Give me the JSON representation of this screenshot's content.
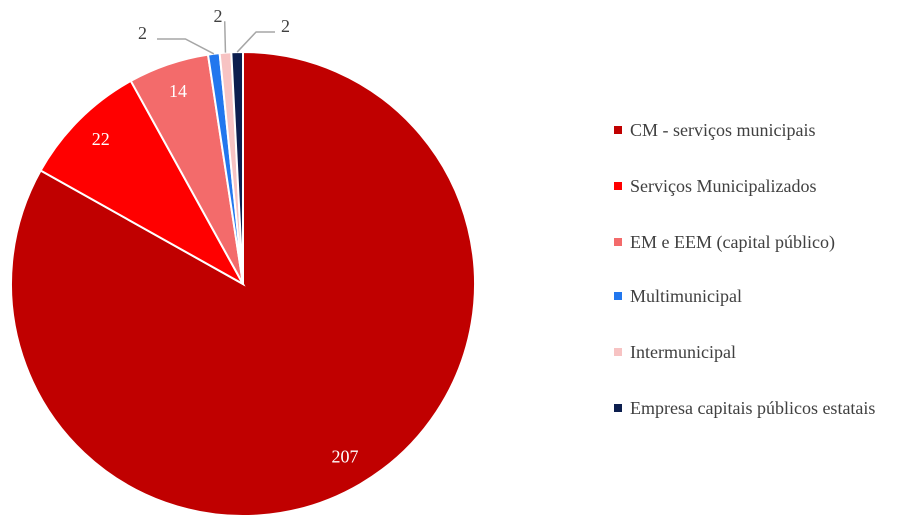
{
  "chart_data": {
    "type": "pie",
    "categories": [
      "CM - serviços municipais",
      "Serviços Municipalizados",
      "EM e EEM (capital público)",
      "Multimunicipal",
      "Intermunicipal",
      "Empresa capitais públicos estatais"
    ],
    "values": [
      207,
      22,
      14,
      2,
      2,
      2
    ],
    "colors": [
      "#c00000",
      "#ff0000",
      "#f36b6b",
      "#2277ee",
      "#f7c3c3",
      "#0c1e4e"
    ],
    "legend": "right"
  }
}
